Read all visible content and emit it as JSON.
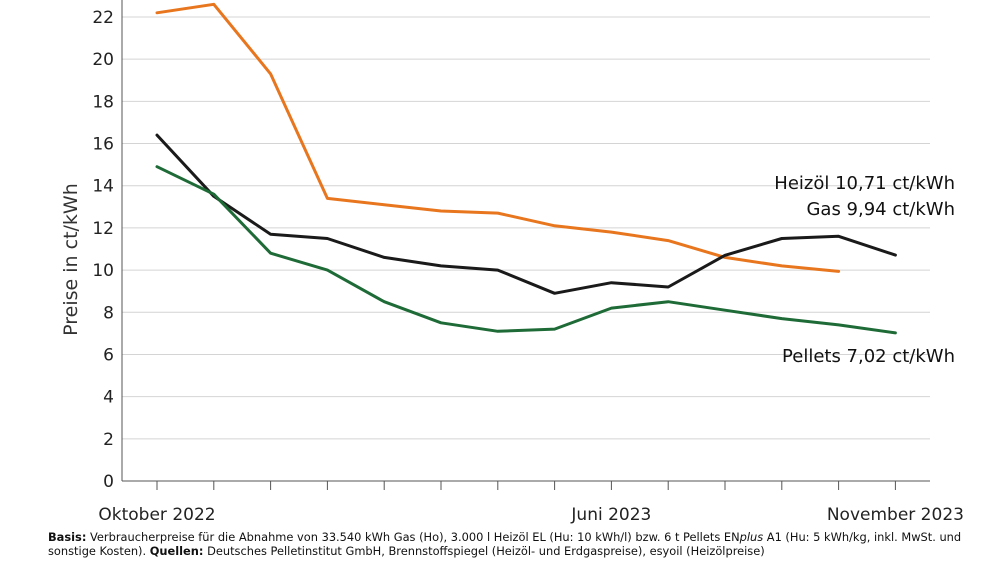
{
  "chart_data": {
    "type": "line",
    "ylabel": "Preise in ct/kWh",
    "xlabel": "",
    "ylim": [
      0,
      23
    ],
    "yticks": [
      0,
      2,
      4,
      6,
      8,
      10,
      12,
      14,
      16,
      18,
      20,
      22
    ],
    "grid": true,
    "x": [
      "2022-10",
      "2022-11",
      "2022-12",
      "2023-01",
      "2023-02",
      "2023-03",
      "2023-04",
      "2023-05",
      "2023-06",
      "2023-07",
      "2023-08",
      "2023-09",
      "2023-10",
      "2023-11"
    ],
    "x_tick_labels": [
      {
        "x": "2022-10",
        "label": "Oktober 2022"
      },
      {
        "x": "2023-06",
        "label": "Juni 2023"
      },
      {
        "x": "2023-11",
        "label": "November 2023"
      }
    ],
    "series": [
      {
        "name": "Gas",
        "color": "#e8761e",
        "values": [
          22.2,
          22.6,
          19.3,
          13.4,
          13.1,
          12.8,
          12.7,
          12.1,
          11.8,
          11.4,
          10.6,
          10.2,
          9.94,
          null
        ]
      },
      {
        "name": "Heizöl",
        "color": "#1a1a1a",
        "values": [
          16.4,
          13.5,
          11.7,
          11.5,
          10.6,
          10.2,
          10.0,
          8.9,
          9.4,
          9.2,
          10.7,
          11.5,
          11.6,
          10.71
        ]
      },
      {
        "name": "Pellets",
        "color": "#1f6b37",
        "values": [
          14.9,
          13.6,
          10.8,
          10.0,
          8.5,
          7.5,
          7.1,
          7.2,
          8.2,
          8.5,
          8.1,
          7.7,
          7.4,
          7.02
        ]
      }
    ],
    "labels": [
      {
        "series": "Heizöl",
        "name": "Heizöl",
        "value": "10,71 ct/kWh"
      },
      {
        "series": "Gas",
        "name": "Gas",
        "value": "9,94 ct/kWh"
      },
      {
        "series": "Pellets",
        "name": "Pellets",
        "value": "7,02 ct/kWh"
      }
    ]
  },
  "footnote": {
    "basis_label": "Basis:",
    "basis_text_1": " Verbraucherpreise für die Abnahme von 33.540 kWh Gas (Ho), 3.000 l Heizöl EL (Hu: 10 kWh/l) bzw. 6 t Pellets EN",
    "basis_plus": "plus",
    "basis_text_2": " A1 (Hu: 5 kWh/kg, inkl. MwSt. und sonstige Kosten). ",
    "sources_label": "Quellen:",
    "sources_text": " Deutsches Pelletinstitut GmbH, Brennstoffspiegel (Heizöl- und Erdgaspreise), esyoil (Heizölpreise)"
  }
}
